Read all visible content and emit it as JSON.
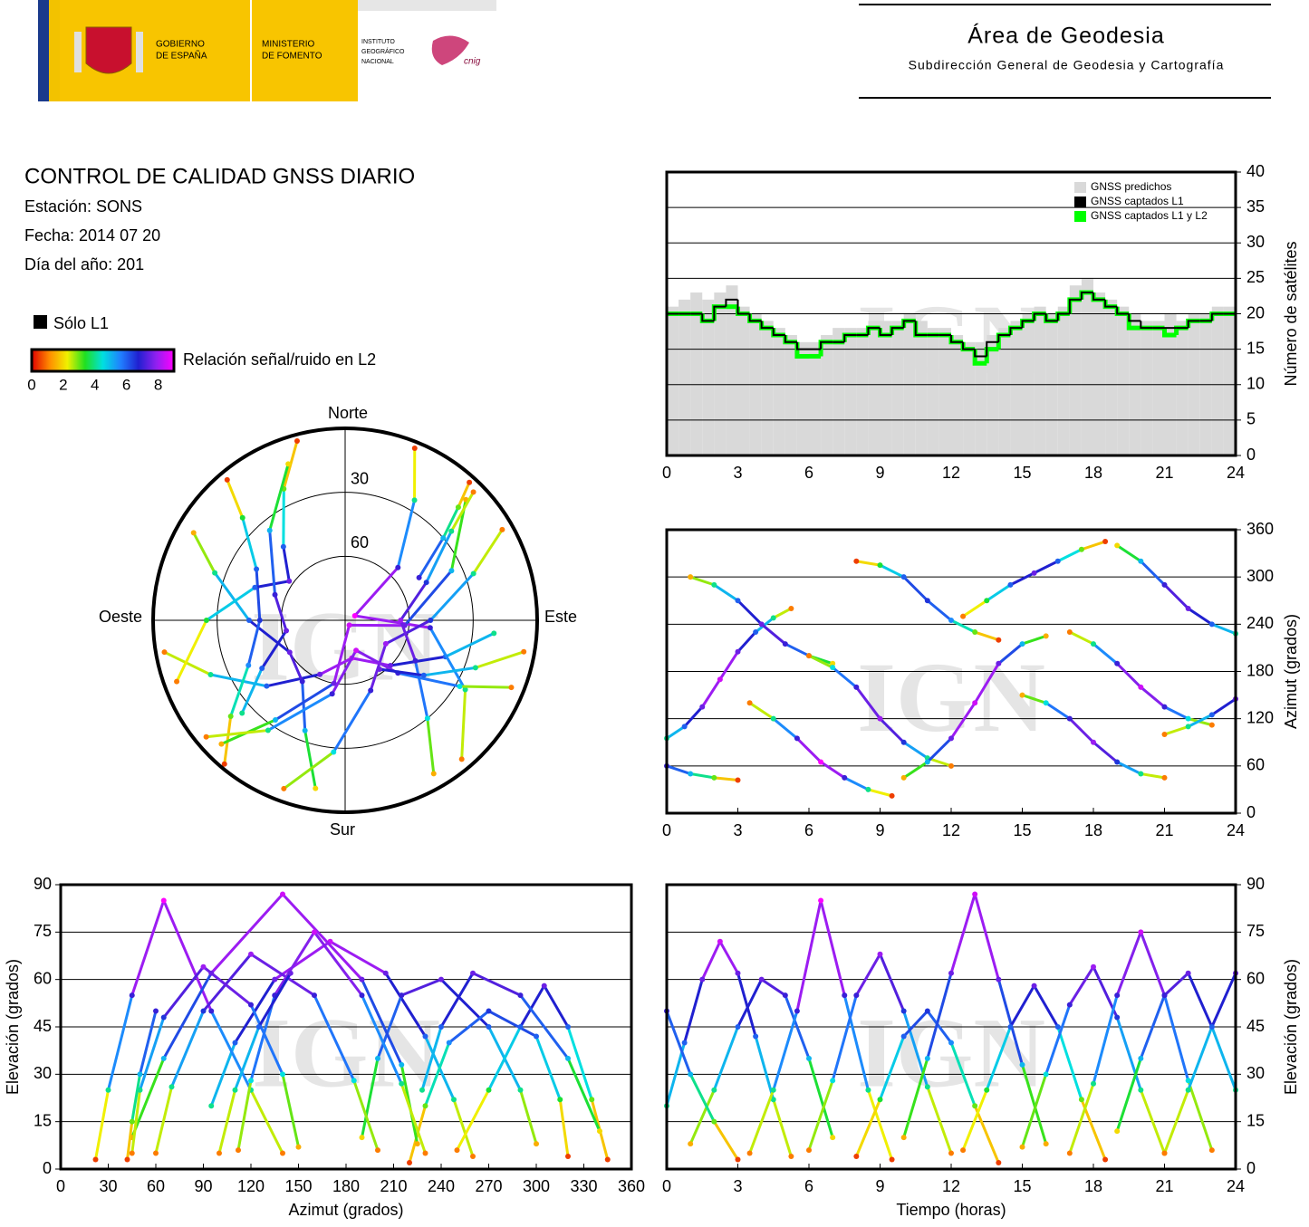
{
  "header": {
    "gobierno": [
      "GOBIERNO",
      "DE ESPAÑA"
    ],
    "ministerio": [
      "MINISTERIO",
      "DE FOMENTO"
    ],
    "instituto": [
      "INSTITUTO",
      "GEOGRÁFICO",
      "NACIONAL"
    ],
    "cnig": "cnig",
    "area": "Área de Geodesia",
    "subdireccion": "Subdirección General de Geodesia y Cartografía"
  },
  "report": {
    "title": "CONTROL DE CALIDAD GNSS DIARIO",
    "station": "Estación: SONS",
    "date": "Fecha: 2014 07 20",
    "doy": "Día del año: 201"
  },
  "legend": {
    "l1_only": "Sólo L1",
    "l1_only_color": "#000000",
    "snr_label": "Relación señal/ruido en L2"
  },
  "colorbar": {
    "lim": [
      0,
      9
    ],
    "ticks": [
      0,
      2,
      4,
      6,
      8
    ],
    "colors": [
      "#e00000",
      "#ff8c00",
      "#f0f000",
      "#20e020",
      "#00e0e0",
      "#2080ff",
      "#2020d0",
      "#9020f0",
      "#ff00ff"
    ]
  },
  "watermark": "IGN",
  "tracks": [
    {
      "time": [
        0,
        0.75,
        1.5,
        2.25,
        3,
        3.75,
        4.5,
        5.25
      ],
      "azimuth": [
        95,
        110,
        135,
        170,
        205,
        230,
        248,
        260
      ],
      "elevation": [
        20,
        40,
        60,
        72,
        62,
        42,
        22,
        4
      ],
      "snr": [
        4,
        6,
        7.5,
        8.5,
        7.5,
        6,
        4,
        1
      ]
    },
    {
      "time": [
        1,
        2,
        3,
        4,
        5,
        6,
        7
      ],
      "azimuth": [
        300,
        290,
        270,
        240,
        215,
        200,
        190
      ],
      "elevation": [
        8,
        25,
        45,
        60,
        55,
        35,
        10
      ],
      "snr": [
        1.5,
        4,
        6,
        7.5,
        7,
        5,
        2
      ]
    },
    {
      "time": [
        3.5,
        4.5,
        5.5,
        6.5,
        7.5,
        8.5,
        9.5
      ],
      "azimuth": [
        140,
        120,
        95,
        65,
        45,
        30,
        22
      ],
      "elevation": [
        5,
        25,
        50,
        85,
        55,
        25,
        3
      ],
      "snr": [
        1,
        4,
        7,
        9,
        7,
        4,
        0.5
      ]
    },
    {
      "time": [
        6,
        7,
        8,
        9,
        10,
        11,
        12
      ],
      "azimuth": [
        200,
        185,
        160,
        120,
        90,
        70,
        60
      ],
      "elevation": [
        6,
        28,
        55,
        68,
        50,
        26,
        5
      ],
      "snr": [
        1,
        4.5,
        7,
        8,
        6.5,
        4,
        1
      ]
    },
    {
      "time": [
        8,
        9,
        10,
        11,
        12,
        13,
        14
      ],
      "azimuth": [
        320,
        315,
        300,
        270,
        245,
        230,
        220
      ],
      "elevation": [
        4,
        22,
        42,
        50,
        40,
        20,
        2
      ],
      "snr": [
        0.5,
        3.5,
        6,
        6.5,
        5.5,
        3,
        0.5
      ]
    },
    {
      "time": [
        10,
        11,
        12,
        13,
        14,
        15,
        16
      ],
      "azimuth": [
        45,
        65,
        95,
        140,
        190,
        215,
        225
      ],
      "elevation": [
        10,
        35,
        62,
        87,
        60,
        33,
        8
      ],
      "snr": [
        1.5,
        5,
        7.5,
        8.5,
        7.5,
        5,
        1.5
      ]
    },
    {
      "time": [
        12.5,
        13.5,
        14.5,
        15.5,
        16.5,
        17.5,
        18.5
      ],
      "azimuth": [
        250,
        270,
        290,
        305,
        320,
        335,
        345
      ],
      "elevation": [
        6,
        25,
        45,
        58,
        45,
        22,
        3
      ],
      "snr": [
        1,
        3.5,
        6,
        7.5,
        6,
        3,
        0.5
      ]
    },
    {
      "time": [
        15,
        16,
        17,
        18,
        19,
        20,
        21
      ],
      "azimuth": [
        150,
        140,
        120,
        90,
        65,
        50,
        45
      ],
      "elevation": [
        7,
        30,
        52,
        64,
        48,
        25,
        5
      ],
      "snr": [
        1.5,
        4.5,
        7,
        8,
        6.5,
        4,
        1
      ]
    },
    {
      "time": [
        17,
        18,
        19,
        20,
        21,
        22,
        23
      ],
      "azimuth": [
        230,
        215,
        190,
        160,
        135,
        120,
        112
      ],
      "elevation": [
        5,
        27,
        55,
        75,
        55,
        28,
        6
      ],
      "snr": [
        1,
        4,
        7,
        8.5,
        7,
        4.5,
        1
      ]
    },
    {
      "time": [
        19,
        20,
        21,
        22,
        23,
        24
      ],
      "azimuth": [
        340,
        320,
        290,
        260,
        240,
        228
      ],
      "elevation": [
        12,
        35,
        55,
        62,
        45,
        25
      ],
      "snr": [
        2,
        5,
        7,
        7.5,
        6,
        4
      ]
    },
    {
      "time": [
        0,
        1,
        2,
        3
      ],
      "azimuth": [
        60,
        50,
        45,
        42
      ],
      "elevation": [
        50,
        30,
        15,
        3
      ],
      "snr": [
        7,
        5,
        3,
        0.5
      ]
    },
    {
      "time": [
        21,
        22,
        23,
        24
      ],
      "azimuth": [
        100,
        110,
        125,
        145
      ],
      "elevation": [
        5,
        25,
        45,
        62
      ],
      "snr": [
        1,
        4,
        6,
        7.5
      ]
    }
  ],
  "chart_data": [
    {
      "type": "step",
      "y_label": "Número de satélites",
      "xlim": [
        0,
        24
      ],
      "xticks": [
        0,
        3,
        6,
        9,
        12,
        15,
        18,
        21,
        24
      ],
      "ylim": [
        0,
        40
      ],
      "yticks": [
        0,
        5,
        10,
        15,
        20,
        25,
        30,
        35,
        40
      ],
      "grid": true,
      "legend": "upper right",
      "x": [
        0,
        0.5,
        1,
        1.5,
        2,
        2.5,
        3,
        3.5,
        4,
        4.5,
        5,
        5.5,
        6,
        6.5,
        7,
        7.5,
        8,
        8.5,
        9,
        9.5,
        10,
        10.5,
        11,
        11.5,
        12,
        12.5,
        13,
        13.5,
        14,
        14.5,
        15,
        15.5,
        16,
        16.5,
        17,
        17.5,
        18,
        18.5,
        19,
        19.5,
        20,
        20.5,
        21,
        21.5,
        22,
        22.5,
        23,
        23.5
      ],
      "series": [
        {
          "name": "GNSS predichos",
          "color": "#d9d9d9",
          "values": [
            21,
            22,
            23,
            22,
            23,
            24,
            21,
            20,
            19,
            18,
            17,
            16,
            16,
            17,
            18,
            18,
            18,
            19,
            19,
            19,
            20,
            19,
            18,
            18,
            17,
            16,
            16,
            17,
            18,
            19,
            20,
            21,
            20,
            21,
            24,
            25,
            23,
            22,
            21,
            20,
            19,
            19,
            20,
            19,
            20,
            20,
            21,
            21
          ]
        },
        {
          "name": "GNSS captados L1",
          "color": "#000000",
          "values": [
            20,
            20,
            20,
            19,
            21,
            22,
            20,
            19,
            18,
            17,
            16,
            15,
            15,
            16,
            16,
            17,
            17,
            18,
            17,
            18,
            19,
            17,
            17,
            17,
            16,
            15,
            14,
            16,
            17,
            18,
            19,
            20,
            19,
            20,
            22,
            23,
            22,
            21,
            20,
            19,
            18,
            18,
            18,
            18,
            19,
            19,
            20,
            20
          ]
        },
        {
          "name": "GNSS captados L1 y L2",
          "color": "#00ff00",
          "values": [
            20,
            20,
            20,
            19,
            21,
            21,
            20,
            19,
            18,
            17,
            16,
            14,
            14,
            16,
            16,
            17,
            17,
            18,
            17,
            18,
            19,
            17,
            17,
            17,
            16,
            15,
            13,
            15,
            17,
            18,
            19,
            20,
            19,
            20,
            22,
            23,
            22,
            21,
            20,
            18,
            18,
            18,
            17,
            18,
            19,
            19,
            20,
            20
          ]
        }
      ]
    },
    {
      "type": "polar",
      "labels": {
        "north": "Norte",
        "south": "Sur",
        "west": "Oeste",
        "east": "Este"
      },
      "rings": [
        30,
        60
      ],
      "rlim": [
        90,
        0
      ]
    },
    {
      "type": "scatter",
      "x_field": "time",
      "y_field": "azimuth",
      "y_label": "Azimut (grados)",
      "xlim": [
        0,
        24
      ],
      "xticks": [
        0,
        3,
        6,
        9,
        12,
        15,
        18,
        21,
        24
      ],
      "ylim": [
        0,
        360
      ],
      "yticks": [
        0,
        60,
        120,
        180,
        240,
        300,
        360
      ],
      "grid": true,
      "y_side": "right"
    },
    {
      "type": "scatter",
      "x_field": "azimuth",
      "y_field": "elevation",
      "x_label": "Azimut (grados)",
      "y_label": "Elevación (grados)",
      "xlim": [
        0,
        360
      ],
      "xticks": [
        0,
        30,
        60,
        90,
        120,
        150,
        180,
        210,
        240,
        270,
        300,
        330,
        360
      ],
      "ylim": [
        0,
        90
      ],
      "yticks": [
        0,
        15,
        30,
        45,
        60,
        75,
        90
      ],
      "grid": true,
      "y_side": "left"
    },
    {
      "type": "scatter",
      "x_field": "time",
      "y_field": "elevation",
      "x_label": "Tiempo (horas)",
      "y_label": "Elevación (grados)",
      "xlim": [
        0,
        24
      ],
      "xticks": [
        0,
        3,
        6,
        9,
        12,
        15,
        18,
        21,
        24
      ],
      "ylim": [
        0,
        90
      ],
      "yticks": [
        0,
        15,
        30,
        45,
        60,
        75,
        90
      ],
      "grid": true,
      "y_side": "right"
    }
  ]
}
